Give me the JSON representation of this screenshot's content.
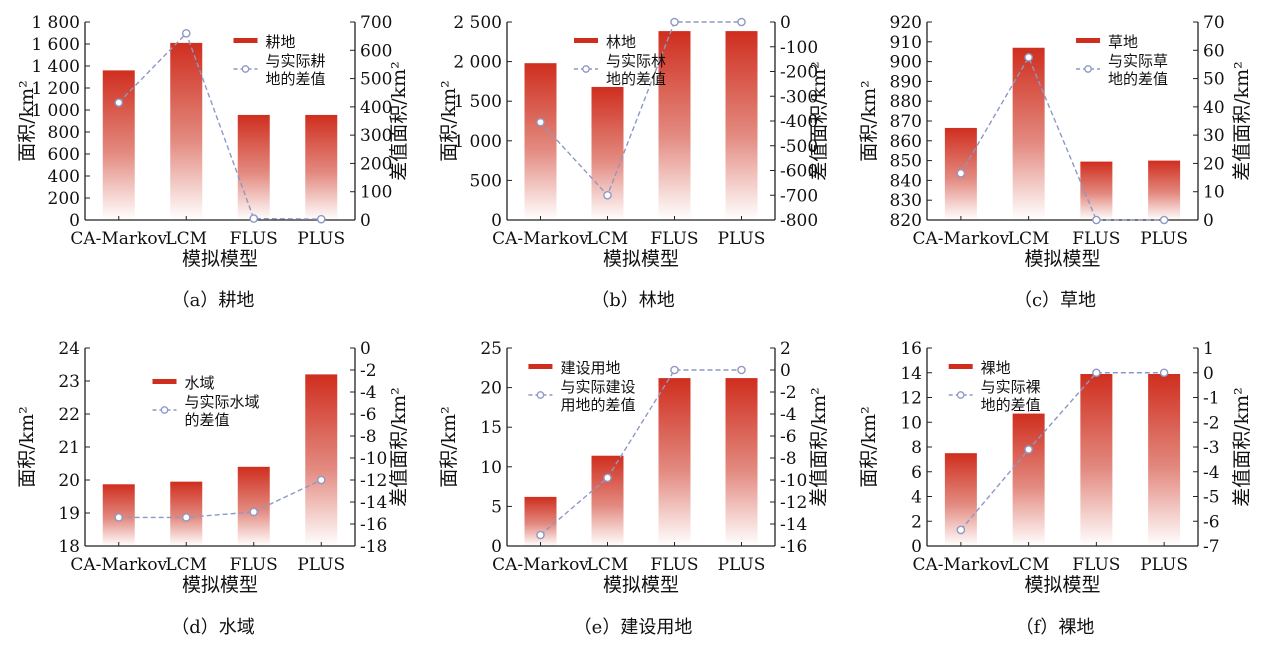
{
  "colors": {
    "bar_top": "#cf2e1e",
    "bar_bottom": "#ffffff",
    "diff_line": "#8e98c4",
    "axis": "#222222"
  },
  "chart_data": [
    {
      "type": "bar",
      "caption": "（a）耕地",
      "categories": [
        "CA-Markov",
        "LCM",
        "FLUS",
        "PLUS"
      ],
      "xlabel": "模拟模型",
      "ylabel": "面积/km²",
      "y2label": "差值面积/km²",
      "ylim": [
        0,
        1800
      ],
      "yticks": [
        0,
        200,
        400,
        600,
        800,
        1000,
        1200,
        1400,
        1600,
        1800
      ],
      "ytick_labels": [
        "0",
        "200",
        "400",
        "600",
        "800",
        "1 000",
        "1 200",
        "1 400",
        "1 600",
        "1 800"
      ],
      "y2lim": [
        0,
        700
      ],
      "y2ticks": [
        0,
        100,
        200,
        300,
        400,
        500,
        600,
        700
      ],
      "y2tick_labels": [
        "0",
        "100",
        "200",
        "300",
        "400",
        "500",
        "600",
        "700"
      ],
      "legend_position": "top-right",
      "series": [
        {
          "name": "耕地",
          "kind": "bar",
          "axis": "left",
          "values": [
            1360,
            1610,
            955,
            955
          ]
        },
        {
          "name_lines": [
            "与实际耕",
            "地的差值"
          ],
          "kind": "line",
          "axis": "right",
          "values": [
            415,
            660,
            5,
            3
          ]
        }
      ]
    },
    {
      "type": "bar",
      "caption": "（b）林地",
      "categories": [
        "CA-Markov",
        "LCM",
        "FLUS",
        "PLUS"
      ],
      "xlabel": "模拟模型",
      "ylabel": "面积/km²",
      "y2label": "差值面积/km²",
      "ylim": [
        0,
        2500
      ],
      "yticks": [
        0,
        500,
        1000,
        1500,
        2000,
        2500
      ],
      "ytick_labels": [
        "0",
        "500",
        "1 000",
        "1 500",
        "2 000",
        "2 500"
      ],
      "y2lim": [
        -800,
        0
      ],
      "y2ticks": [
        -800,
        -700,
        -600,
        -500,
        -400,
        -300,
        -200,
        -100,
        0
      ],
      "y2tick_labels": [
        "-800",
        "-700",
        "-600",
        "-500",
        "-400",
        "-300",
        "-200",
        "-100",
        "0"
      ],
      "legend_position": "top-center",
      "series": [
        {
          "name": "林地",
          "kind": "bar",
          "axis": "left",
          "values": [
            1980,
            1680,
            2385,
            2385
          ]
        },
        {
          "name_lines": [
            "与实际林",
            "地的差值"
          ],
          "kind": "line",
          "axis": "right",
          "values": [
            -405,
            -700,
            0,
            0
          ]
        }
      ]
    },
    {
      "type": "bar",
      "caption": "（c）草地",
      "categories": [
        "CA-Markov",
        "LCM",
        "FLUS",
        "PLUS"
      ],
      "xlabel": "模拟模型",
      "ylabel": "面积/km²",
      "y2label": "差值面积/km²",
      "ylim": [
        820,
        920
      ],
      "yticks": [
        820,
        830,
        840,
        850,
        860,
        870,
        880,
        890,
        900,
        910,
        920
      ],
      "ytick_labels": [
        "820",
        "830",
        "840",
        "850",
        "860",
        "870",
        "880",
        "890",
        "900",
        "910",
        "920"
      ],
      "y2lim": [
        0,
        70
      ],
      "y2ticks": [
        0,
        10,
        20,
        30,
        40,
        50,
        60,
        70
      ],
      "y2tick_labels": [
        "0",
        "10",
        "20",
        "30",
        "40",
        "50",
        "60",
        "70"
      ],
      "legend_position": "top-right",
      "series": [
        {
          "name": "草地",
          "kind": "bar",
          "axis": "left",
          "values": [
            866.5,
            907,
            849.5,
            850
          ]
        },
        {
          "name_lines": [
            "与实际草",
            "地的差值"
          ],
          "kind": "line",
          "axis": "right",
          "values": [
            16.5,
            57.5,
            0,
            0
          ]
        }
      ]
    },
    {
      "type": "bar",
      "caption": "（d）水域",
      "categories": [
        "CA-Markov",
        "LCM",
        "FLUS",
        "PLUS"
      ],
      "xlabel": "模拟模型",
      "ylabel": "面积/km²",
      "y2label": "差值面积/km²",
      "ylim": [
        18,
        24
      ],
      "yticks": [
        18,
        19,
        20,
        21,
        22,
        23,
        24
      ],
      "ytick_labels": [
        "18",
        "19",
        "20",
        "21",
        "22",
        "23",
        "24"
      ],
      "y2lim": [
        -18,
        0
      ],
      "y2ticks": [
        -18,
        -16,
        -14,
        -12,
        -10,
        -8,
        -6,
        -4,
        -2,
        0
      ],
      "y2tick_labels": [
        "-18",
        "-16",
        "-14",
        "-12",
        "-10",
        "-8",
        "-6",
        "-4",
        "-2",
        "0"
      ],
      "legend_position": "top-center",
      "series": [
        {
          "name": "水域",
          "kind": "bar",
          "axis": "left",
          "values": [
            19.87,
            19.95,
            20.4,
            23.2
          ]
        },
        {
          "name_lines": [
            "与实际水域",
            "的差值"
          ],
          "kind": "line",
          "axis": "right",
          "values": [
            -15.4,
            -15.4,
            -14.9,
            -12
          ]
        }
      ]
    },
    {
      "type": "bar",
      "caption": "（e）建设用地",
      "categories": [
        "CA-Markov",
        "LCM",
        "FLUS",
        "PLUS"
      ],
      "xlabel": "模拟模型",
      "ylabel": "面积/km²",
      "y2label": "差值面积/km²",
      "ylim": [
        0,
        25
      ],
      "yticks": [
        0,
        5,
        10,
        15,
        20,
        25
      ],
      "ytick_labels": [
        "0",
        "5",
        "10",
        "15",
        "20",
        "25"
      ],
      "y2lim": [
        -16,
        2
      ],
      "y2ticks": [
        -16,
        -14,
        -12,
        -10,
        -8,
        -6,
        -4,
        -2,
        0,
        2
      ],
      "y2tick_labels": [
        "-16",
        "-14",
        "-12",
        "-10",
        "-8",
        "-6",
        "-4",
        "-2",
        "0",
        "2"
      ],
      "legend_position": "top-left",
      "series": [
        {
          "name": "建设用地",
          "kind": "bar",
          "axis": "left",
          "values": [
            6.2,
            11.4,
            21.2,
            21.2
          ]
        },
        {
          "name_lines": [
            "与实际建设",
            "用地的差值"
          ],
          "kind": "line",
          "axis": "right",
          "values": [
            -15,
            -9.8,
            0,
            0
          ]
        }
      ]
    },
    {
      "type": "bar",
      "caption": "（f）裸地",
      "categories": [
        "CA-Markov",
        "LCM",
        "FLUS",
        "PLUS"
      ],
      "xlabel": "模拟模型",
      "ylabel": "面积/km²",
      "y2label": "差值面积/km²",
      "ylim": [
        0,
        16
      ],
      "yticks": [
        0,
        2,
        4,
        6,
        8,
        10,
        12,
        14,
        16
      ],
      "ytick_labels": [
        "0",
        "2",
        "4",
        "6",
        "8",
        "10",
        "12",
        "14",
        "16"
      ],
      "y2lim": [
        -7,
        1
      ],
      "y2ticks": [
        -7,
        -6,
        -5,
        -4,
        -3,
        -2,
        -1,
        0,
        1
      ],
      "y2tick_labels": [
        "-7",
        "-6",
        "-5",
        "-4",
        "-3",
        "-2",
        "-1",
        "0",
        "1"
      ],
      "legend_position": "top-left",
      "series": [
        {
          "name": "裸地",
          "kind": "bar",
          "axis": "left",
          "values": [
            7.5,
            10.7,
            13.9,
            13.9
          ]
        },
        {
          "name_lines": [
            "与实际裸",
            "地的差值"
          ],
          "kind": "line",
          "axis": "right",
          "values": [
            -6.35,
            -3.1,
            0,
            0
          ]
        }
      ]
    }
  ]
}
